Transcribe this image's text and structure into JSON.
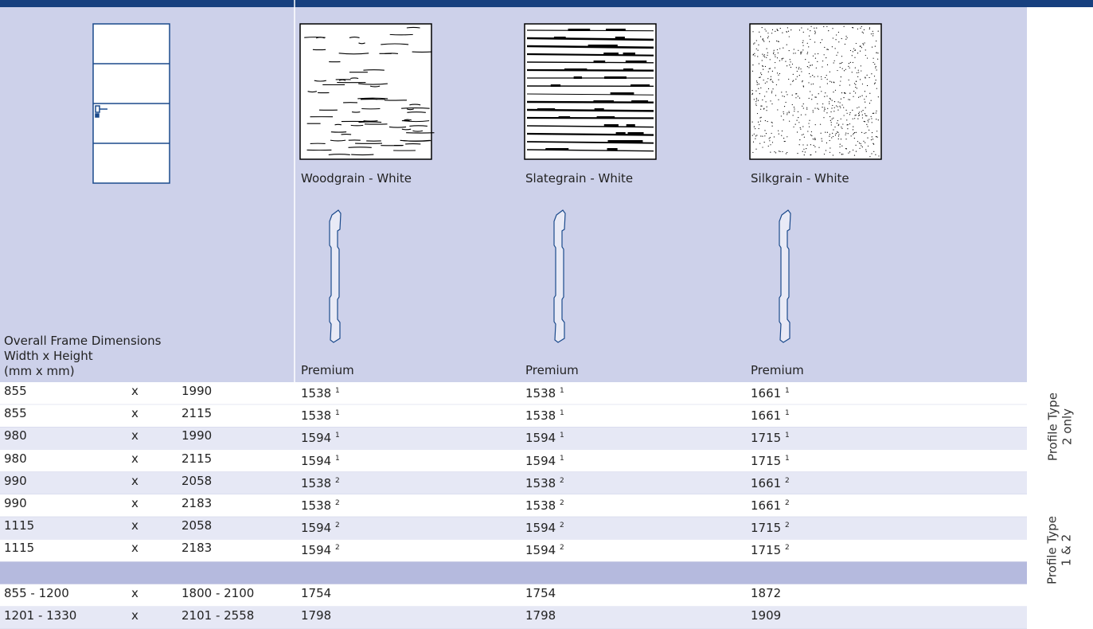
{
  "table": {
    "header": {
      "frame_label": [
        "Overall Frame Dimensions",
        "Width x Height",
        "(mm x mm)"
      ],
      "columns": [
        {
          "finish": "Woodgrain - White",
          "grade": "Premium"
        },
        {
          "finish": "Slategrain - White",
          "grade": "Premium"
        },
        {
          "finish": "Silkgrain - White",
          "grade": "Premium"
        }
      ]
    },
    "times": "x",
    "rows": [
      {
        "width": "855",
        "height": "1990",
        "cells": [
          {
            "value": "1538",
            "note": "1"
          },
          {
            "value": "1538",
            "note": "1"
          },
          {
            "value": "1661",
            "note": "1"
          }
        ]
      },
      {
        "width": "855",
        "height": "2115",
        "cells": [
          {
            "value": "1538",
            "note": "1"
          },
          {
            "value": "1538",
            "note": "1"
          },
          {
            "value": "1661",
            "note": "1"
          }
        ]
      },
      {
        "width": "980",
        "height": "1990",
        "cells": [
          {
            "value": "1594",
            "note": "1"
          },
          {
            "value": "1594",
            "note": "1"
          },
          {
            "value": "1715",
            "note": "1"
          }
        ]
      },
      {
        "width": "980",
        "height": "2115",
        "cells": [
          {
            "value": "1594",
            "note": "1"
          },
          {
            "value": "1594",
            "note": "1"
          },
          {
            "value": "1715",
            "note": "1"
          }
        ]
      },
      {
        "width": "990",
        "height": "2058",
        "cells": [
          {
            "value": "1538",
            "note": "2"
          },
          {
            "value": "1538",
            "note": "2"
          },
          {
            "value": "1661",
            "note": "2"
          }
        ]
      },
      {
        "width": "990",
        "height": "2183",
        "cells": [
          {
            "value": "1538",
            "note": "2"
          },
          {
            "value": "1538",
            "note": "2"
          },
          {
            "value": "1661",
            "note": "2"
          }
        ]
      },
      {
        "width": "1115",
        "height": "2058",
        "cells": [
          {
            "value": "1594",
            "note": "2"
          },
          {
            "value": "1594",
            "note": "2"
          },
          {
            "value": "1715",
            "note": "2"
          }
        ]
      },
      {
        "width": "1115",
        "height": "2183",
        "cells": [
          {
            "value": "1594",
            "note": "2"
          },
          {
            "value": "1594",
            "note": "2"
          },
          {
            "value": "1715",
            "note": "2"
          }
        ]
      },
      {
        "width": "855 - 1200",
        "height": "1800 - 2100",
        "cells": [
          {
            "value": "1754"
          },
          {
            "value": "1754"
          },
          {
            "value": "1872"
          }
        ]
      },
      {
        "width": "1201 - 1330",
        "height": "2101 - 2558",
        "cells": [
          {
            "value": "1798"
          },
          {
            "value": "1798"
          },
          {
            "value": "1909"
          }
        ]
      }
    ],
    "groups": [
      {
        "label": [
          "Profile Type",
          "2 only"
        ]
      },
      {
        "label": [
          "Profile Type",
          "1 & 2"
        ]
      }
    ]
  }
}
